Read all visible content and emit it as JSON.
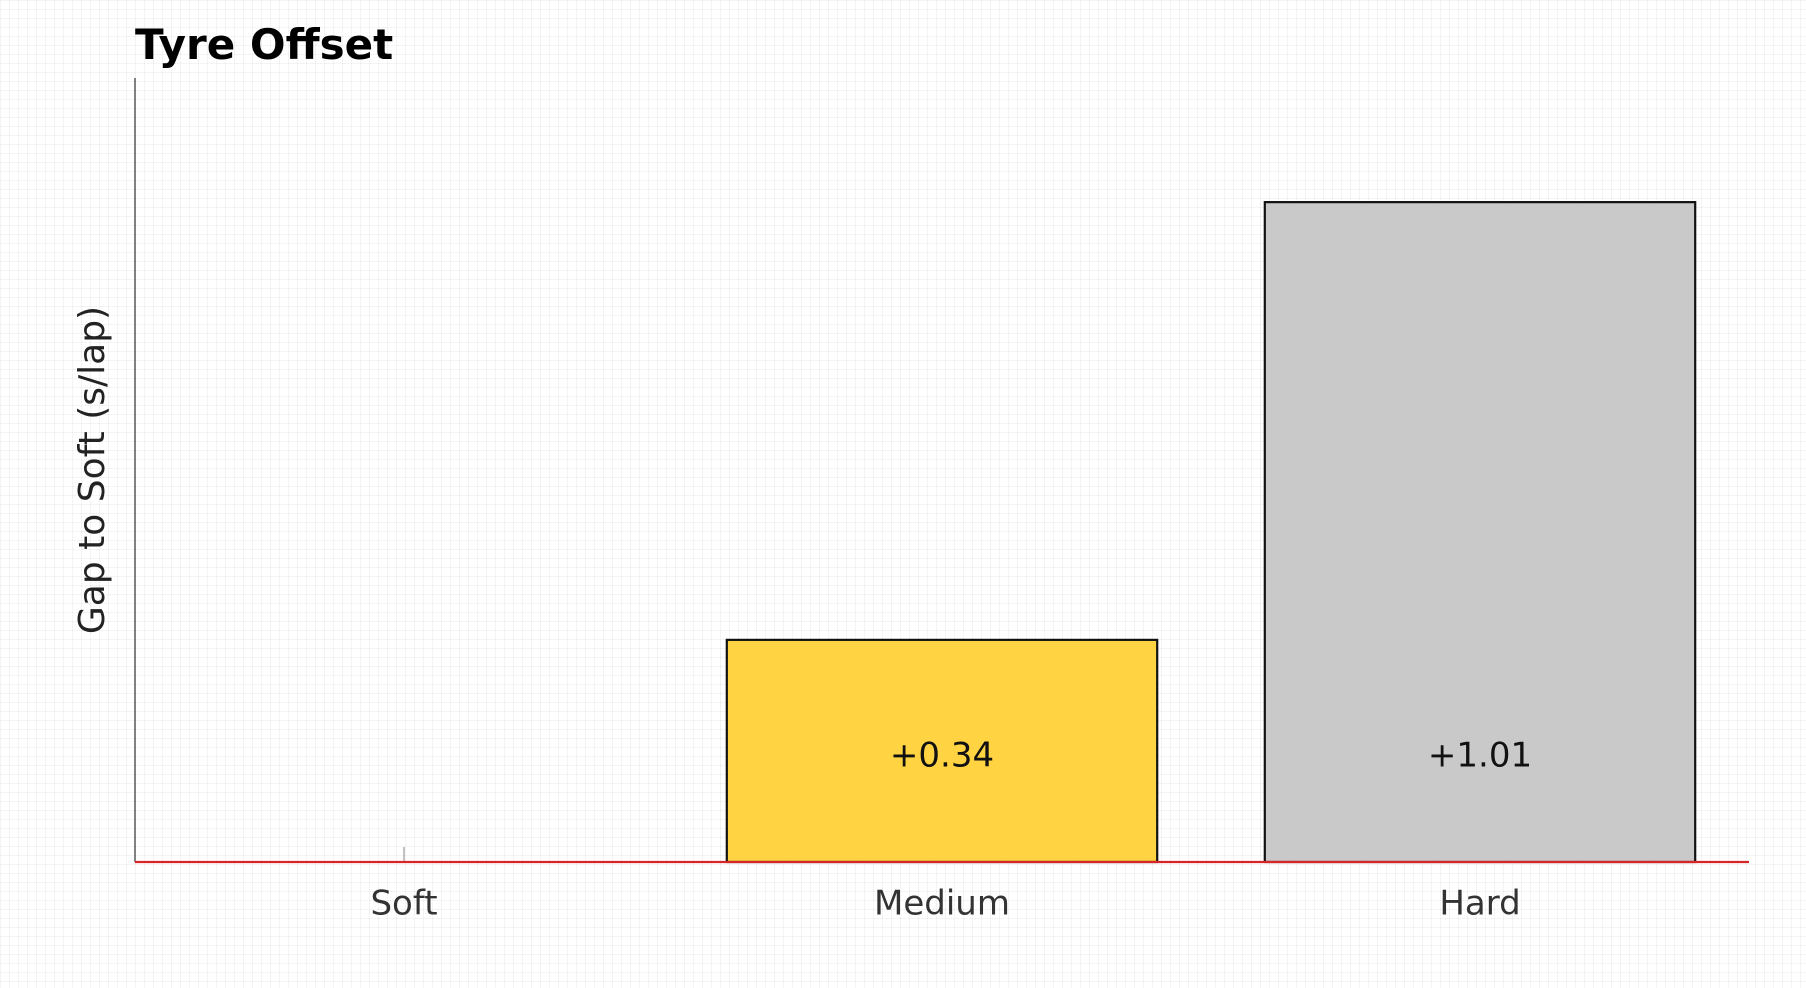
{
  "chart_data": {
    "type": "bar",
    "title": "Tyre Offset",
    "ylabel": "Gap to Soft (s/lap)",
    "categories": [
      "Soft",
      "Medium",
      "Hard"
    ],
    "values": [
      0,
      0.34,
      1.01
    ],
    "value_labels": [
      null,
      "+0.34",
      "+1.01"
    ],
    "colors": [
      "#e10600",
      "#ffd342",
      "#c9c9c9"
    ],
    "ylim": [
      0,
      1.2
    ]
  }
}
